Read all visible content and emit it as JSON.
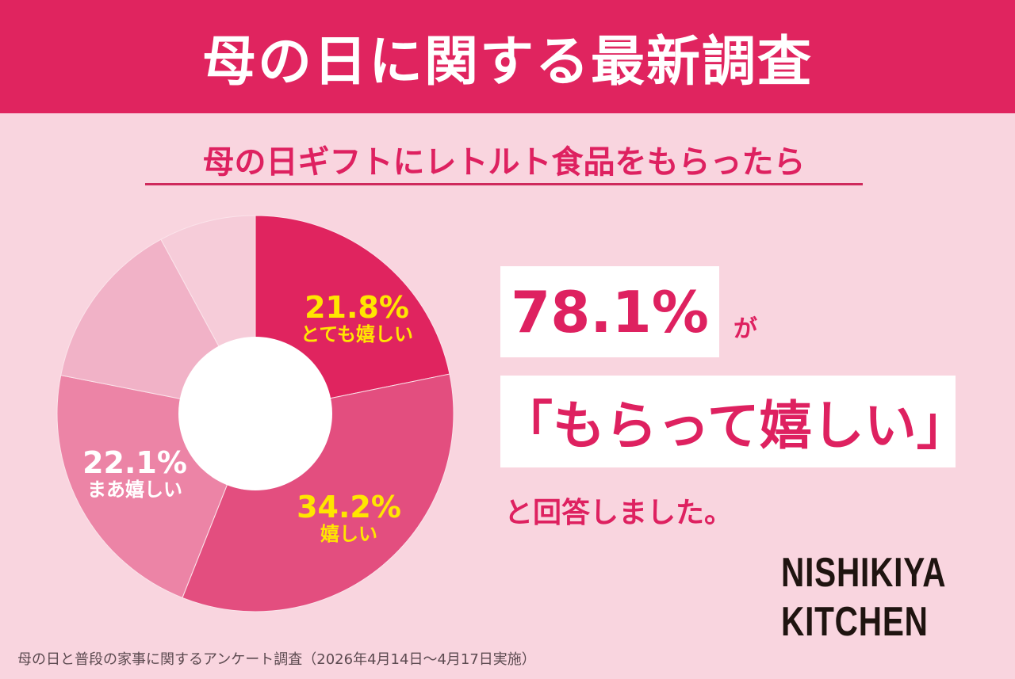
{
  "header": {
    "title": "母の日に関する最新調査"
  },
  "subtitle": "母の日ギフトにレトルト食品をもらったら",
  "colors": {
    "brand": "#e0245f",
    "background": "#f9d5df",
    "highlight_text": "#ffe600"
  },
  "chart_data": {
    "type": "pie",
    "subtype": "donut",
    "title": "母の日ギフトにレトルト食品をもらったら",
    "categories": [
      "とても嬉しい",
      "嬉しい",
      "まあ嬉しい",
      "(unlabeled)",
      "(unlabeled)"
    ],
    "values": [
      21.8,
      34.2,
      22.1,
      14.0,
      7.9
    ],
    "colors": [
      "#e0245f",
      "#e34e7f",
      "#ec84a6",
      "#f1b2c7",
      "#f6ccd9"
    ],
    "labels": [
      {
        "pct": "21.8%",
        "caption": "とても嬉しい"
      },
      {
        "pct": "34.2%",
        "caption": "嬉しい"
      },
      {
        "pct": "22.1%",
        "caption": "まあ嬉しい"
      }
    ],
    "start_angle": "12 o'clock, clockwise"
  },
  "callout": {
    "figure": "78.1%",
    "particle": "が",
    "quote": "「もらって嬉しい」",
    "answer": "と回答しました。"
  },
  "logo": {
    "line1": "NISHIKIYA",
    "line2": "KITCHEN"
  },
  "footnote": "母の日と普段の家事に関するアンケート調査（2026年4月14日〜4月17日実施）"
}
